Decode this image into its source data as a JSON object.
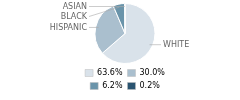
{
  "chart_data": {
    "type": "pie",
    "categories": [
      "WHITE",
      "HISPANIC",
      "BLACK",
      "ASIAN"
    ],
    "values": [
      63.6,
      30.0,
      6.2,
      0.2
    ],
    "value_labels": [
      "63.6%",
      "30.0%",
      "6.2%",
      "0.2%"
    ],
    "colors": [
      "#d9e2ea",
      "#aabfce",
      "#6a94aa",
      "#2a5470"
    ],
    "legend": "bottom"
  }
}
